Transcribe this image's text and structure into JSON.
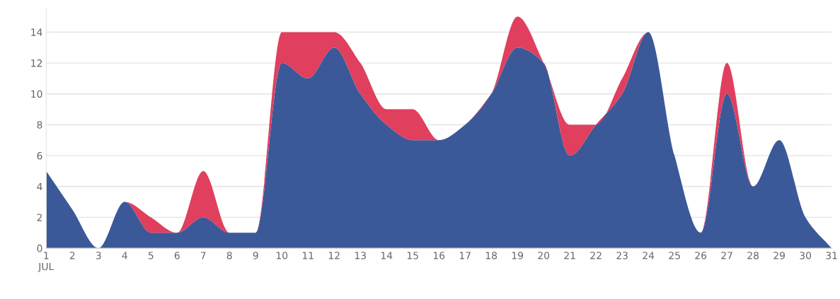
{
  "chart_data": {
    "type": "area",
    "stacked": true,
    "categories": [
      "1\nJUL",
      "2",
      "3",
      "4",
      "5",
      "6",
      "7",
      "8",
      "9",
      "10",
      "11",
      "12",
      "13",
      "14",
      "15",
      "16",
      "17",
      "18",
      "19",
      "20",
      "21",
      "22",
      "23",
      "24",
      "25",
      "26",
      "27",
      "28",
      "29",
      "30",
      "31"
    ],
    "series": [
      {
        "color": "#3b5898",
        "values": [
          5,
          2.5,
          0,
          3,
          1,
          1,
          2,
          1,
          1,
          12,
          11,
          13,
          10,
          8,
          7,
          7,
          8,
          10,
          13,
          12,
          6,
          8,
          10,
          14,
          6,
          1,
          10,
          4,
          7,
          2,
          0
        ]
      },
      {
        "color": "#e0405e",
        "values": [
          0,
          0,
          0,
          0,
          1,
          0,
          3,
          0,
          0,
          2,
          3,
          1,
          2,
          1,
          2,
          0,
          0,
          0,
          2,
          0,
          2,
          0,
          1,
          0,
          0,
          0,
          2,
          0,
          0,
          0,
          0
        ]
      }
    ],
    "ylim": [
      0,
      15.5
    ],
    "yticks": [
      0,
      2,
      4,
      6,
      8,
      10,
      12,
      14
    ],
    "grid": "y"
  }
}
